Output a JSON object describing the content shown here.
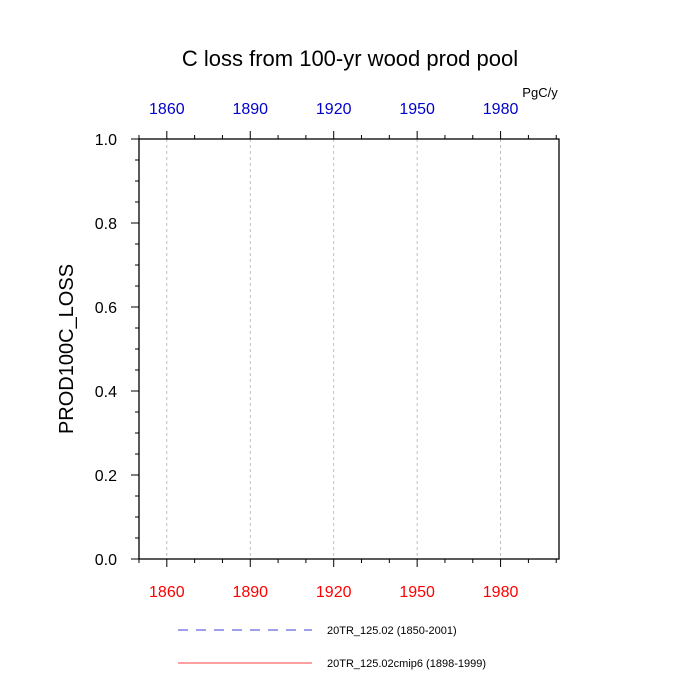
{
  "chart_data": {
    "type": "line",
    "title": "C loss from 100-yr wood prod pool",
    "ylabel": "PROD100C_LOSS",
    "units": "PgC/y",
    "xlim": [
      1850,
      2001
    ],
    "ylim": [
      0,
      1.0
    ],
    "x_ticks": [
      1860,
      1890,
      1920,
      1950,
      1980
    ],
    "x_ticks_bottom_color": "#ff0000",
    "x_ticks_top_color": "#0000cc",
    "y_ticks": [
      "0.0",
      "0.2",
      "0.4",
      "0.6",
      "0.8",
      "1.0"
    ],
    "y_tick_values": [
      0,
      0.2,
      0.4,
      0.6,
      0.8,
      1.0
    ],
    "grid_x": true,
    "series": [
      {
        "name": "20TR_125.02 (1850-2001)",
        "color": "#0000cc",
        "dash": "dashed",
        "x": [
          1850,
          2001
        ],
        "y": [
          0,
          0
        ]
      },
      {
        "name": "20TR_125.02cmip6 (1898-1999)",
        "color": "#ff0000",
        "dash": "solid",
        "x": [
          1898,
          1999
        ],
        "y": [
          0,
          0
        ]
      }
    ]
  }
}
